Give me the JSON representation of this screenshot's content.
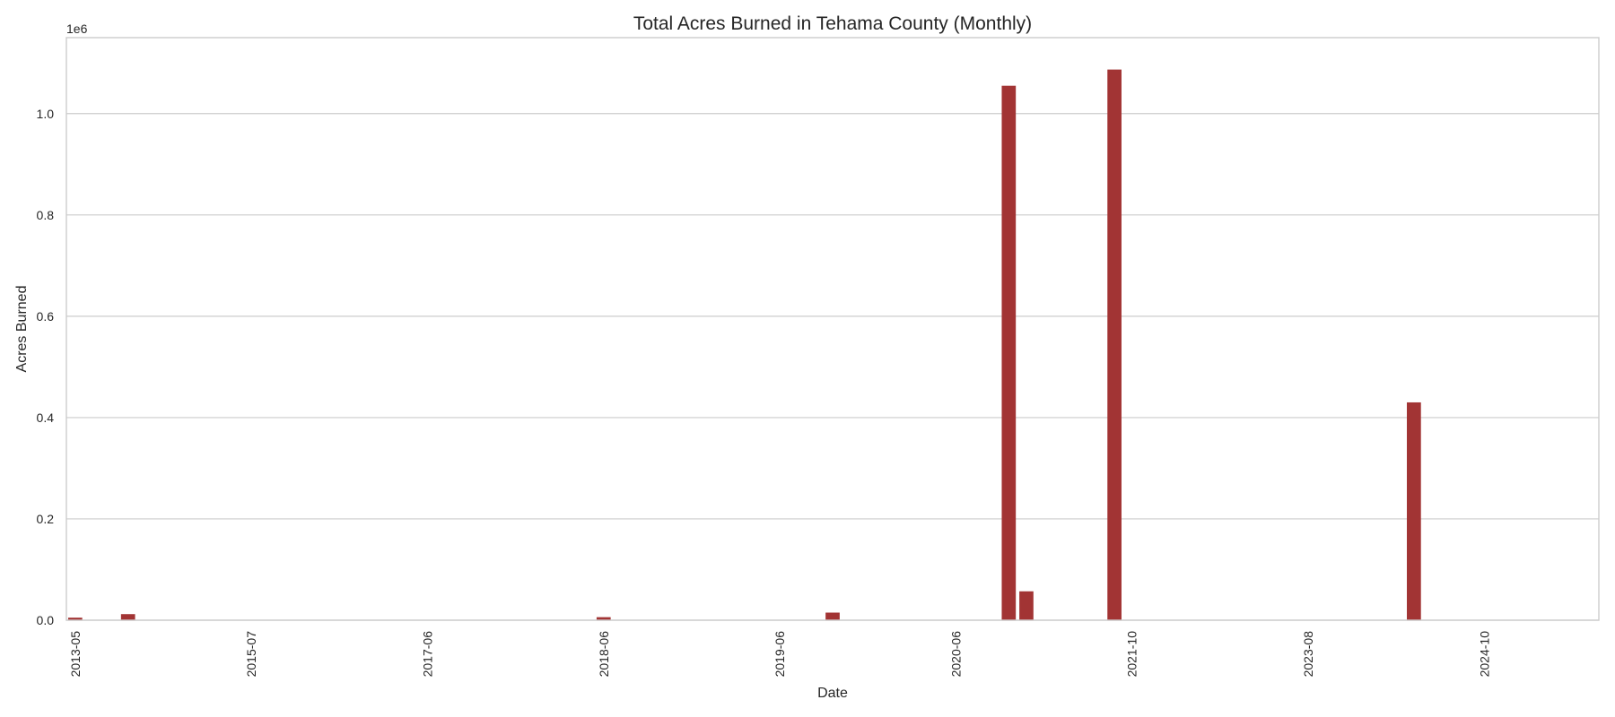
{
  "chart_data": {
    "type": "bar",
    "title": "Total Acres Burned in Tehama County (Monthly)",
    "xlabel": "Date",
    "ylabel": "Acres Burned",
    "scale_note": "1e6",
    "ylim": [
      0,
      1150000
    ],
    "yticks": [
      0,
      200000,
      400000,
      600000,
      800000,
      1000000
    ],
    "ytick_labels": [
      "0.0",
      "0.2",
      "0.4",
      "0.6",
      "0.8",
      "1.0"
    ],
    "grid": true,
    "bar_color": "#a23434",
    "categories": [
      "2013-05",
      "2013-06",
      "2013-07",
      "2014-01",
      "2014-02",
      "2014-03",
      "2014-04",
      "2014-05",
      "2014-06",
      "2014-07",
      "2015-07",
      "2015-08",
      "2015-09",
      "2015-10",
      "2015-11",
      "2015-12",
      "2016-01",
      "2016-06",
      "2016-07",
      "2016-08",
      "2017-06",
      "2017-07",
      "2017-08",
      "2017-09",
      "2017-10",
      "2017-11",
      "2017-12",
      "2018-01",
      "2018-04",
      "2018-05",
      "2018-06",
      "2018-07",
      "2018-08",
      "2018-09",
      "2018-10",
      "2018-11",
      "2019-01",
      "2019-02",
      "2019-03",
      "2019-04",
      "2019-06",
      "2019-07",
      "2019-08",
      "2019-09",
      "2019-10",
      "2019-11",
      "2019-12",
      "2020-02",
      "2020-04",
      "2020-05",
      "2020-06",
      "2020-07",
      "2020-08",
      "2020-09",
      "2020-10",
      "2020-11",
      "2021-06",
      "2021-07",
      "2021-08",
      "2021-09",
      "2021-10",
      "2022-05",
      "2022-06",
      "2022-07",
      "2022-08",
      "2022-09",
      "2022-10",
      "2023-01",
      "2023-06",
      "2023-07",
      "2023-08",
      "2023-09",
      "2023-10",
      "2024-01",
      "2024-04",
      "2024-05",
      "2024-06",
      "2024-07",
      "2024-08",
      "2024-09",
      "2024-10",
      "2024-11",
      "2024-12",
      "2025-01",
      "2025-02",
      "2025-03",
      "2025-04"
    ],
    "values": [
      5000,
      0,
      0,
      12000,
      0,
      0,
      0,
      0,
      0,
      0,
      0,
      0,
      0,
      0,
      0,
      0,
      0,
      0,
      0,
      0,
      0,
      0,
      0,
      0,
      0,
      0,
      0,
      0,
      0,
      0,
      6000,
      0,
      0,
      0,
      0,
      0,
      0,
      0,
      0,
      0,
      0,
      0,
      0,
      15000,
      0,
      0,
      0,
      0,
      0,
      0,
      0,
      0,
      0,
      1055000,
      57000,
      0,
      0,
      0,
      0,
      1087000,
      0,
      0,
      0,
      0,
      0,
      0,
      0,
      0,
      0,
      0,
      0,
      0,
      0,
      0,
      0,
      0,
      430000,
      0,
      0,
      0,
      0,
      0,
      0,
      0,
      0,
      0,
      0
    ],
    "xticks_shown": [
      "2013-05",
      "2015-07",
      "2017-06",
      "2018-06",
      "2019-06",
      "2020-06",
      "2021-10",
      "2023-08",
      "2024-10"
    ]
  }
}
